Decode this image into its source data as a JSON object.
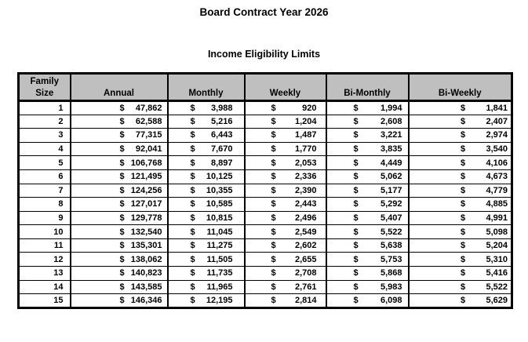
{
  "page": {
    "title": "Board Contract Year 2026",
    "subtitle": "Income Eligibility Limits"
  },
  "colors": {
    "header_bg": "#BFBFBF",
    "border": "#000000",
    "text": "#000000",
    "page_bg": "#FFFFFF"
  },
  "table": {
    "currency_symbol": "$",
    "headers": {
      "family_size": "Family Size",
      "annual": "Annual",
      "monthly": "Monthly",
      "weekly": "Weekly",
      "bi_monthly": "Bi-Monthly",
      "bi_weekly": "Bi-Weekly"
    },
    "rows": [
      {
        "family_size": "1",
        "annual": "47,862",
        "monthly": "3,988",
        "weekly": "920",
        "bi_monthly": "1,994",
        "bi_weekly": "1,841"
      },
      {
        "family_size": "2",
        "annual": "62,588",
        "monthly": "5,216",
        "weekly": "1,204",
        "bi_monthly": "2,608",
        "bi_weekly": "2,407"
      },
      {
        "family_size": "3",
        "annual": "77,315",
        "monthly": "6,443",
        "weekly": "1,487",
        "bi_monthly": "3,221",
        "bi_weekly": "2,974"
      },
      {
        "family_size": "4",
        "annual": "92,041",
        "monthly": "7,670",
        "weekly": "1,770",
        "bi_monthly": "3,835",
        "bi_weekly": "3,540"
      },
      {
        "family_size": "5",
        "annual": "106,768",
        "monthly": "8,897",
        "weekly": "2,053",
        "bi_monthly": "4,449",
        "bi_weekly": "4,106"
      },
      {
        "family_size": "6",
        "annual": "121,495",
        "monthly": "10,125",
        "weekly": "2,336",
        "bi_monthly": "5,062",
        "bi_weekly": "4,673"
      },
      {
        "family_size": "7",
        "annual": "124,256",
        "monthly": "10,355",
        "weekly": "2,390",
        "bi_monthly": "5,177",
        "bi_weekly": "4,779"
      },
      {
        "family_size": "8",
        "annual": "127,017",
        "monthly": "10,585",
        "weekly": "2,443",
        "bi_monthly": "5,292",
        "bi_weekly": "4,885"
      },
      {
        "family_size": "9",
        "annual": "129,778",
        "monthly": "10,815",
        "weekly": "2,496",
        "bi_monthly": "5,407",
        "bi_weekly": "4,991"
      },
      {
        "family_size": "10",
        "annual": "132,540",
        "monthly": "11,045",
        "weekly": "2,549",
        "bi_monthly": "5,522",
        "bi_weekly": "5,098"
      },
      {
        "family_size": "11",
        "annual": "135,301",
        "monthly": "11,275",
        "weekly": "2,602",
        "bi_monthly": "5,638",
        "bi_weekly": "5,204"
      },
      {
        "family_size": "12",
        "annual": "138,062",
        "monthly": "11,505",
        "weekly": "2,655",
        "bi_monthly": "5,753",
        "bi_weekly": "5,310"
      },
      {
        "family_size": "13",
        "annual": "140,823",
        "monthly": "11,735",
        "weekly": "2,708",
        "bi_monthly": "5,868",
        "bi_weekly": "5,416"
      },
      {
        "family_size": "14",
        "annual": "143,585",
        "monthly": "11,965",
        "weekly": "2,761",
        "bi_monthly": "5,983",
        "bi_weekly": "5,522"
      },
      {
        "family_size": "15",
        "annual": "146,346",
        "monthly": "12,195",
        "weekly": "2,814",
        "bi_monthly": "6,098",
        "bi_weekly": "5,629"
      }
    ]
  }
}
